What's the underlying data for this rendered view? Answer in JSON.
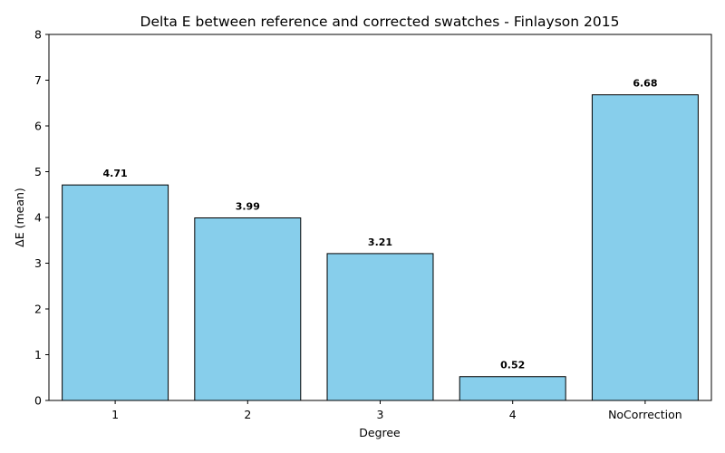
{
  "chart_data": {
    "type": "bar",
    "title": "Delta E between reference and corrected swatches - Finlayson 2015",
    "xlabel": "Degree",
    "ylabel": "ΔE (mean)",
    "categories": [
      "1",
      "2",
      "3",
      "4",
      "NoCorrection"
    ],
    "values": [
      4.71,
      3.99,
      3.21,
      0.52,
      6.68
    ],
    "value_labels": [
      "4.71",
      "3.99",
      "3.21",
      "0.52",
      "6.68"
    ],
    "ylim": [
      0,
      8
    ],
    "yticks": [
      0,
      1,
      2,
      3,
      4,
      5,
      6,
      7,
      8
    ],
    "grid": false,
    "legend": "none",
    "colors": {
      "bar_fill": "#87ceeb",
      "bar_edge": "#000000",
      "text": "#000000"
    }
  }
}
